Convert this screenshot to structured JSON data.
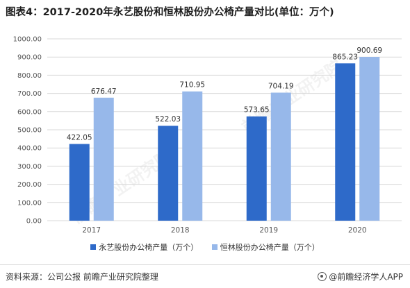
{
  "title": "图表4：2017-2020年永艺股份和恒林股份办公椅产量对比(单位：万个)",
  "source": "资料来源：公司公报 前瞻产业研究院整理",
  "brand": "@前瞻经济学人APP",
  "watermark": "前瞻产业研究院",
  "colors": {
    "series_1": "#2e6ac9",
    "series_2": "#97b8ea",
    "grid": "#d9d9d9",
    "axis_text": "#555555"
  },
  "chart_data": {
    "type": "bar",
    "categories": [
      "2017",
      "2018",
      "2019",
      "2020"
    ],
    "series": [
      {
        "name": "永艺股份办公椅产量（万个）",
        "values": [
          422.05,
          522.03,
          573.65,
          865.23
        ]
      },
      {
        "name": "恒林股份办公椅产量（万个）",
        "values": [
          676.47,
          710.95,
          704.19,
          900.69
        ]
      }
    ],
    "y_ticks": [
      "0.00",
      "100.00",
      "200.00",
      "300.00",
      "400.00",
      "500.00",
      "600.00",
      "700.00",
      "800.00",
      "900.00",
      "1000.00"
    ],
    "ylim": [
      0,
      1000
    ],
    "grid": true,
    "legend_position": "bottom",
    "xlabel": "",
    "ylabel": ""
  }
}
